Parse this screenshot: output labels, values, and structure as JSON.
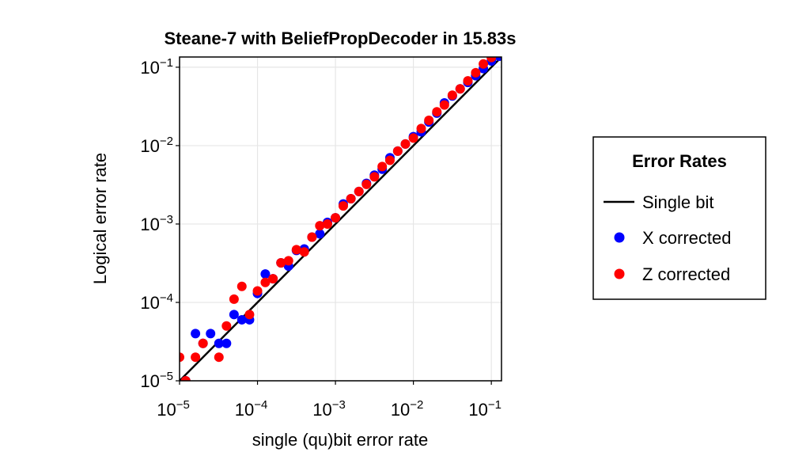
{
  "chart_data": {
    "type": "scatter",
    "title": "Steane-7 with BeliefPropDecoder in 15.83s",
    "xlabel": "single (qu)bit error rate",
    "ylabel": "Logical error rate",
    "xscale": "log",
    "yscale": "log",
    "xlim": [
      1e-05,
      0.135
    ],
    "ylim": [
      1e-05,
      0.135
    ],
    "xticks": [
      {
        "base": "10",
        "exp": "−5"
      },
      {
        "base": "10",
        "exp": "−4"
      },
      {
        "base": "10",
        "exp": "−3"
      },
      {
        "base": "10",
        "exp": "−2"
      },
      {
        "base": "10",
        "exp": "−1"
      }
    ],
    "yticks": [
      {
        "base": "10",
        "exp": "−5"
      },
      {
        "base": "10",
        "exp": "−4"
      },
      {
        "base": "10",
        "exp": "−3"
      },
      {
        "base": "10",
        "exp": "−2"
      },
      {
        "base": "10",
        "exp": "−1"
      }
    ],
    "grid": true,
    "legend": {
      "title": "Error Rates",
      "placement": "right",
      "entries": [
        {
          "label": "Single bit",
          "kind": "line",
          "color": "#000000"
        },
        {
          "label": "X corrected",
          "kind": "marker",
          "color": "#0000ff"
        },
        {
          "label": "Z corrected",
          "kind": "marker",
          "color": "#ff0000"
        }
      ]
    },
    "series": [
      {
        "name": "Single bit",
        "kind": "line",
        "color": "#000000",
        "x": [
          1e-05,
          0.135
        ],
        "y": [
          1e-05,
          0.135
        ]
      },
      {
        "name": "X corrected",
        "kind": "scatter",
        "color": "#0000ff",
        "x": [
          1.2e-05,
          1.6e-05,
          2e-05,
          2.5e-05,
          3.2e-05,
          4e-05,
          5e-05,
          6.3e-05,
          7.9e-05,
          0.0001,
          0.000126,
          0.000158,
          0.0002,
          0.00025,
          0.000316,
          0.000398,
          0.0005,
          0.00063,
          0.00079,
          0.001,
          0.00126,
          0.00158,
          0.002,
          0.0025,
          0.00316,
          0.00398,
          0.005,
          0.0063,
          0.0079,
          0.01,
          0.0126,
          0.0158,
          0.02,
          0.025,
          0.0316,
          0.0398,
          0.05,
          0.063,
          0.079,
          0.1,
          0.126
        ],
        "y": [
          1e-05,
          4e-05,
          3e-05,
          4e-05,
          3e-05,
          3e-05,
          7e-05,
          6e-05,
          6e-05,
          0.00013,
          0.00023,
          0.0002,
          0.00032,
          0.00029,
          0.00046,
          0.00048,
          0.00068,
          0.00075,
          0.00105,
          0.0012,
          0.0018,
          0.0021,
          0.0026,
          0.0033,
          0.0042,
          0.005,
          0.007,
          0.0085,
          0.0105,
          0.013,
          0.015,
          0.02,
          0.026,
          0.035,
          0.043,
          0.053,
          0.064,
          0.078,
          0.096,
          0.12,
          0.138
        ]
      },
      {
        "name": "Z corrected",
        "kind": "scatter",
        "color": "#ff0000",
        "x": [
          1e-05,
          1.2e-05,
          1.6e-05,
          2e-05,
          3.2e-05,
          4e-05,
          5e-05,
          6.3e-05,
          7.9e-05,
          0.0001,
          0.000126,
          0.000158,
          0.0002,
          0.00025,
          0.000316,
          0.000398,
          0.0005,
          0.00063,
          0.00079,
          0.001,
          0.00126,
          0.00158,
          0.002,
          0.0025,
          0.00316,
          0.00398,
          0.005,
          0.0063,
          0.0079,
          0.01,
          0.0126,
          0.0158,
          0.02,
          0.025,
          0.0316,
          0.0398,
          0.05,
          0.063,
          0.079,
          0.1
        ],
        "y": [
          2e-05,
          1e-05,
          2e-05,
          3e-05,
          2e-05,
          5e-05,
          0.00011,
          0.00016,
          7e-05,
          0.00014,
          0.00018,
          0.0002,
          0.00032,
          0.00034,
          0.00047,
          0.00044,
          0.00068,
          0.00095,
          0.001,
          0.0012,
          0.0017,
          0.0021,
          0.0026,
          0.0032,
          0.004,
          0.0054,
          0.0065,
          0.0085,
          0.0105,
          0.0125,
          0.0165,
          0.021,
          0.027,
          0.033,
          0.044,
          0.053,
          0.067,
          0.085,
          0.11,
          0.133
        ]
      }
    ]
  }
}
